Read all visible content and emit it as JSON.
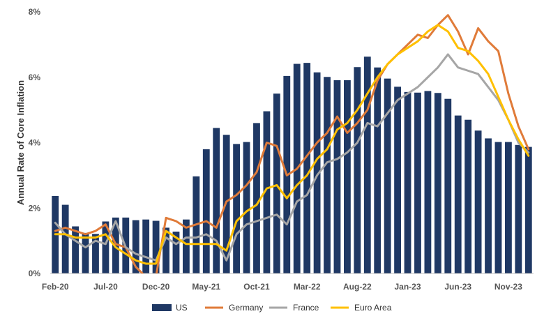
{
  "chart_data": {
    "type": "bar",
    "title": "",
    "xlabel": "",
    "ylabel": "Annual Rate of Core Inflation",
    "ylim": [
      0,
      8
    ],
    "yticks": [
      "0%",
      "2%",
      "4%",
      "6%",
      "8%"
    ],
    "ytick_values": [
      0,
      2,
      4,
      6,
      8
    ],
    "xtick_labels": [
      "Feb-20",
      "Jul-20",
      "Dec-20",
      "May-21",
      "Oct-21",
      "Mar-22",
      "Aug-22",
      "Jan-23",
      "Jun-23",
      "Nov-23"
    ],
    "xtick_index": [
      0,
      5,
      10,
      15,
      20,
      25,
      30,
      35,
      40,
      45
    ],
    "legend_position": "bottom",
    "grid": false,
    "categories": [
      "Feb-20",
      "Mar-20",
      "Apr-20",
      "May-20",
      "Jun-20",
      "Jul-20",
      "Aug-20",
      "Sep-20",
      "Oct-20",
      "Nov-20",
      "Dec-20",
      "Jan-21",
      "Feb-21",
      "Mar-21",
      "Apr-21",
      "May-21",
      "Jun-21",
      "Jul-21",
      "Aug-21",
      "Sep-21",
      "Oct-21",
      "Nov-21",
      "Dec-21",
      "Jan-22",
      "Feb-22",
      "Mar-22",
      "Apr-22",
      "May-22",
      "Jun-22",
      "Jul-22",
      "Aug-22",
      "Sep-22",
      "Oct-22",
      "Nov-22",
      "Dec-22",
      "Jan-23",
      "Feb-23",
      "Mar-23",
      "Apr-23",
      "May-23",
      "Jun-23",
      "Jul-23",
      "Aug-23",
      "Sep-23",
      "Oct-23",
      "Nov-23",
      "Dec-23",
      "Jan-24"
    ],
    "series": [
      {
        "name": "US",
        "kind": "bar",
        "color": "#1f3864",
        "values": [
          2.37,
          2.1,
          1.44,
          1.24,
          1.21,
          1.59,
          1.71,
          1.71,
          1.63,
          1.65,
          1.61,
          1.4,
          1.28,
          1.65,
          2.97,
          3.8,
          4.45,
          4.24,
          3.96,
          4.02,
          4.6,
          4.96,
          5.5,
          6.04,
          6.41,
          6.44,
          6.15,
          6.01,
          5.91,
          5.91,
          6.31,
          6.63,
          6.3,
          5.96,
          5.71,
          5.55,
          5.53,
          5.58,
          5.52,
          5.34,
          4.83,
          4.7,
          4.37,
          4.13,
          4.02,
          4.02,
          3.93,
          3.87
        ]
      },
      {
        "name": "Germany",
        "kind": "line",
        "color": "#e07b39",
        "values": [
          1.3,
          1.4,
          1.3,
          1.2,
          1.3,
          1.5,
          0.9,
          0.8,
          0.2,
          -0.1,
          -0.1,
          1.7,
          1.6,
          1.4,
          1.5,
          1.6,
          1.4,
          2.2,
          2.4,
          2.7,
          3.1,
          4.0,
          3.9,
          3.0,
          3.2,
          3.6,
          4.0,
          4.3,
          4.8,
          4.3,
          4.6,
          5.0,
          5.9,
          6.4,
          6.7,
          7.0,
          7.3,
          7.2,
          7.6,
          7.9,
          7.4,
          6.7,
          7.5,
          7.1,
          6.8,
          5.5,
          4.5,
          3.8
        ]
      },
      {
        "name": "France",
        "kind": "line",
        "color": "#a6a6a6",
        "values": [
          1.55,
          1.2,
          1.0,
          0.8,
          1.0,
          0.9,
          1.6,
          0.8,
          0.6,
          0.5,
          0.4,
          1.1,
          0.9,
          1.1,
          1.1,
          1.2,
          1.0,
          0.4,
          1.2,
          1.5,
          1.6,
          1.7,
          1.8,
          1.5,
          2.2,
          2.4,
          3.0,
          3.4,
          3.5,
          3.7,
          4.0,
          4.6,
          4.5,
          4.9,
          5.3,
          5.5,
          5.7,
          6.0,
          6.3,
          6.7,
          6.3,
          6.2,
          6.1,
          5.7,
          5.3,
          4.7,
          4.0,
          3.7
        ]
      },
      {
        "name": "Euro Area",
        "kind": "line",
        "color": "#ffc000",
        "values": [
          1.2,
          1.2,
          1.1,
          1.1,
          1.1,
          1.2,
          0.8,
          0.6,
          0.4,
          0.3,
          0.3,
          1.3,
          1.1,
          0.9,
          0.9,
          0.9,
          0.9,
          0.7,
          1.6,
          1.9,
          2.1,
          2.6,
          2.7,
          2.3,
          2.7,
          3.0,
          3.5,
          3.8,
          4.4,
          4.6,
          5.0,
          5.5,
          6.0,
          6.4,
          6.7,
          6.9,
          7.1,
          7.4,
          7.6,
          7.4,
          6.9,
          6.8,
          6.5,
          6.1,
          5.4,
          4.7,
          4.1,
          3.6
        ]
      }
    ]
  }
}
